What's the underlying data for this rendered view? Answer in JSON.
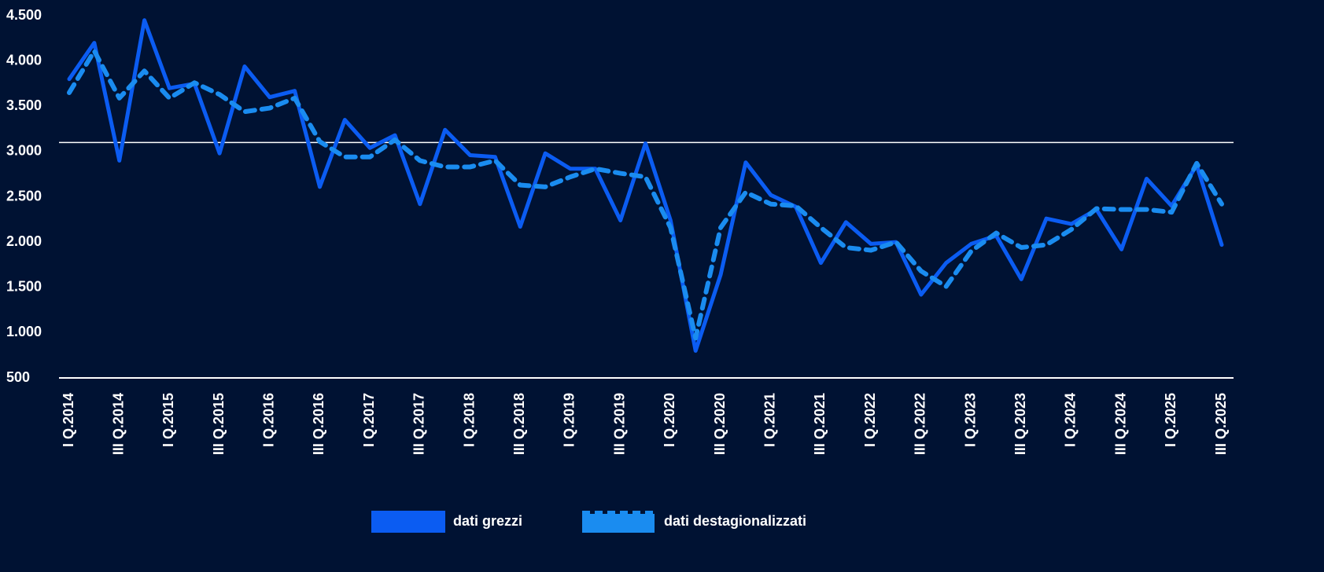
{
  "chart_data": {
    "type": "line",
    "categories": [
      "I Q.2014",
      null,
      "III Q.2014",
      null,
      "I Q.2015",
      null,
      "III Q.2015",
      null,
      "I Q.2016",
      null,
      "III Q.2016",
      null,
      "I Q.2017",
      null,
      "III Q.2017",
      null,
      "I Q.2018",
      null,
      "III Q.2018",
      null,
      "I Q.2019",
      null,
      "III Q.2019",
      null,
      "I Q.2020",
      null,
      "III Q.2020",
      null,
      "I Q.2021",
      null,
      "III Q.2021",
      null,
      "I Q.2022",
      null,
      "III Q.2022",
      null,
      "I Q.2023",
      null,
      "III Q.2023",
      null,
      "I Q.2024",
      null,
      "III Q.2024",
      null,
      "I Q.2025",
      null,
      "III Q.2025"
    ],
    "series": [
      {
        "name": "dati grezzi",
        "color": "#0b5cf2",
        "dashed": false,
        "values": [
          3800,
          4200,
          2900,
          4450,
          3700,
          3750,
          2980,
          3940,
          3600,
          3670,
          2610,
          3350,
          3040,
          3180,
          2420,
          3240,
          2960,
          2940,
          2170,
          2980,
          2810,
          2810,
          2240,
          3090,
          2240,
          800,
          1640,
          2880,
          2520,
          2390,
          1770,
          2220,
          1980,
          2000,
          1420,
          1770,
          1980,
          2070,
          1590,
          2260,
          2200,
          2360,
          1920,
          2700,
          2400,
          2850,
          1970
        ]
      },
      {
        "name": "dati destagionalizzati",
        "color": "#1a8cf0",
        "dashed": true,
        "values": [
          3650,
          4110,
          3590,
          3890,
          3590,
          3760,
          3630,
          3440,
          3480,
          3590,
          3110,
          2940,
          2940,
          3130,
          2900,
          2830,
          2830,
          2900,
          2630,
          2610,
          2720,
          2810,
          2760,
          2720,
          2160,
          940,
          2160,
          2550,
          2420,
          2400,
          2160,
          1940,
          1910,
          2000,
          1680,
          1510,
          1900,
          2100,
          1940,
          1970,
          2140,
          2370,
          2360,
          2360,
          2330,
          2870,
          2420
        ]
      }
    ],
    "ylim": [
      500,
      4500
    ],
    "yticks": [
      500,
      {
        "value": 1000,
        "label": "1.000"
      },
      {
        "value": 1500,
        "label": "1.500"
      },
      {
        "value": 2000,
        "label": "2.000"
      },
      {
        "value": 2500,
        "label": "2.500"
      },
      {
        "value": 3000,
        "label": "3.000"
      },
      {
        "value": 3500,
        "label": "3.500"
      },
      {
        "value": 4000,
        "label": "4.000"
      },
      {
        "value": 4500,
        "label": "4.500"
      }
    ],
    "hline": 3100,
    "legend": "bottom"
  }
}
